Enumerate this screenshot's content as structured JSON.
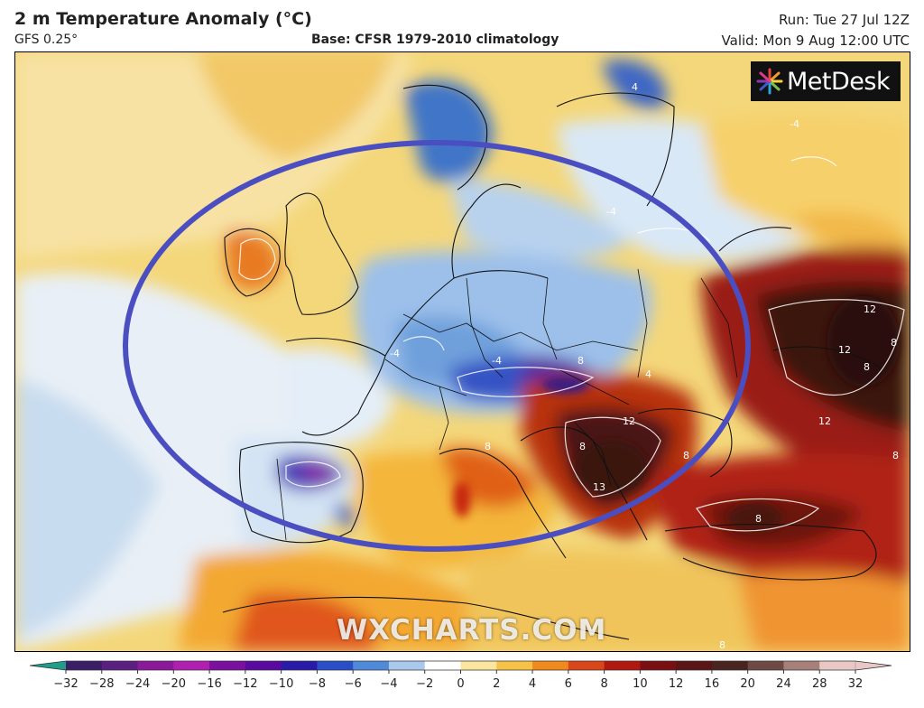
{
  "header": {
    "title": "2 m Temperature Anomaly (°C)",
    "model": "GFS 0.25°",
    "base": "Base: CFSR 1979-2010 climatology",
    "run": "Run: Tue 27 Jul 12Z",
    "valid": "Valid: Mon 9 Aug 12:00 UTC"
  },
  "logo": {
    "text": "MetDesk"
  },
  "watermark": "WXCHARTS.COM",
  "contour_labels": [
    "4",
    "-4",
    "-4",
    "-4",
    "4",
    "8",
    "12",
    "12",
    "8",
    "8",
    "12",
    "8",
    "8",
    "13",
    "8",
    "8",
    "8",
    "-4",
    "8",
    "12"
  ],
  "colorbar": {
    "ticks": [
      "−32",
      "−28",
      "−24",
      "−20",
      "−16",
      "−12",
      "−10",
      "−8",
      "−6",
      "−4",
      "−2",
      "0",
      "2",
      "4",
      "6",
      "8",
      "10",
      "12",
      "16",
      "20",
      "24",
      "28",
      "32"
    ],
    "colors": [
      "#1f9e89",
      "#3b1f66",
      "#5a1f80",
      "#8a1a9a",
      "#b01fb0",
      "#7a0fa0",
      "#5a0aa0",
      "#2a1aa8",
      "#2a4ec8",
      "#4f8ad8",
      "#a9c8ec",
      "#ffffff",
      "#fbe6a0",
      "#f6c246",
      "#f08a1c",
      "#d8461a",
      "#b01810",
      "#7a0f12",
      "#5a1616",
      "#4a2420",
      "#6e4a44",
      "#a7807a",
      "#e8c8c4"
    ]
  },
  "legend_colors": {
    "cold": "#2a4ec8",
    "neutral": "#eaf1f8",
    "warm": "#f6c246",
    "hot": "#7a0f12",
    "ellipse": "#4a4ec0"
  }
}
